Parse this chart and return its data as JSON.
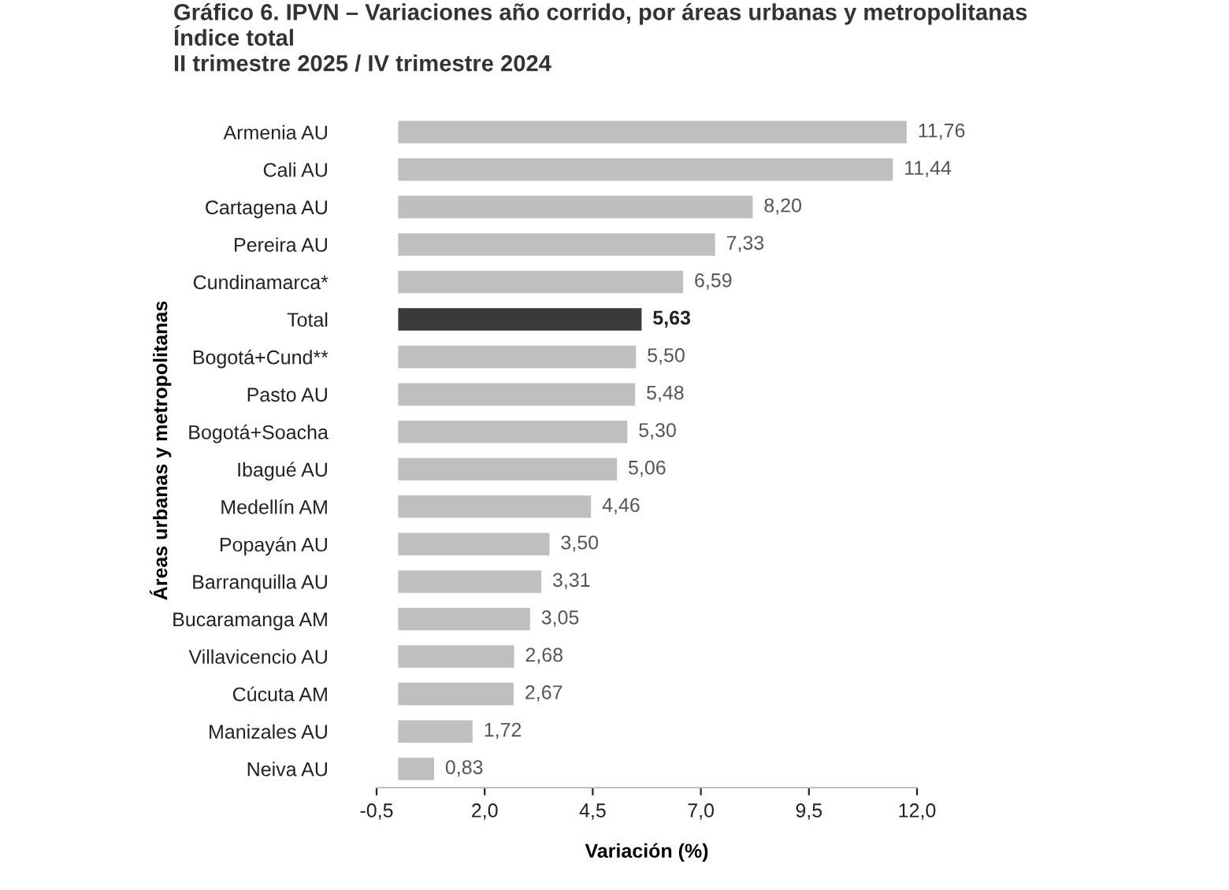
{
  "chart_data": {
    "type": "bar",
    "orientation": "horizontal",
    "title": "Gráfico 6. IPVN – Variaciones año corrido, por áreas urbanas y metropolitanas\nÍndice total\nII trimestre 2025 / IV trimestre 2024",
    "xlabel": "Variación (%)",
    "ylabel": "Áreas urbanas y metropolitanas",
    "categories": [
      "Armenia AU",
      "Cali AU",
      "Cartagena AU",
      "Pereira AU",
      "Cundinamarca*",
      "Total",
      "Bogotá+Cund**",
      "Pasto AU",
      "Bogotá+Soacha",
      "Ibagué AU",
      "Medellín AM",
      "Popayán AU",
      "Barranquilla AU",
      "Bucaramanga AM",
      "Villavicencio AU",
      "Cúcuta AM",
      "Manizales AU",
      "Neiva AU"
    ],
    "values": [
      11.76,
      11.44,
      8.2,
      7.33,
      6.59,
      5.63,
      5.5,
      5.48,
      5.3,
      5.06,
      4.46,
      3.5,
      3.31,
      3.05,
      2.68,
      2.67,
      1.72,
      0.83
    ],
    "value_labels": [
      "11,76",
      "11,44",
      "8,20",
      "7,33",
      "6,59",
      "5,63",
      "5,50",
      "5,48",
      "5,30",
      "5,06",
      "4,46",
      "3,50",
      "3,31",
      "3,05",
      "2,68",
      "2,67",
      "1,72",
      "0,83"
    ],
    "colors": [
      "#bfbfbf",
      "#bfbfbf",
      "#bfbfbf",
      "#bfbfbf",
      "#bfbfbf",
      "#3a3a3a",
      "#bfbfbf",
      "#bfbfbf",
      "#bfbfbf",
      "#bfbfbf",
      "#bfbfbf",
      "#bfbfbf",
      "#bfbfbf",
      "#bfbfbf",
      "#bfbfbf",
      "#bfbfbf",
      "#bfbfbf",
      "#bfbfbf"
    ],
    "xlim": [
      -0.5,
      12.0
    ],
    "xticks": [
      {
        "value": -0.5,
        "label": "-0,5"
      },
      {
        "value": 2.0,
        "label": "2,0"
      },
      {
        "value": 4.5,
        "label": "4,5"
      },
      {
        "value": 7.0,
        "label": "7,0"
      },
      {
        "value": 9.5,
        "label": "9,5"
      },
      {
        "value": 12.0,
        "label": "12,0"
      }
    ],
    "grid": false,
    "legend": false
  }
}
